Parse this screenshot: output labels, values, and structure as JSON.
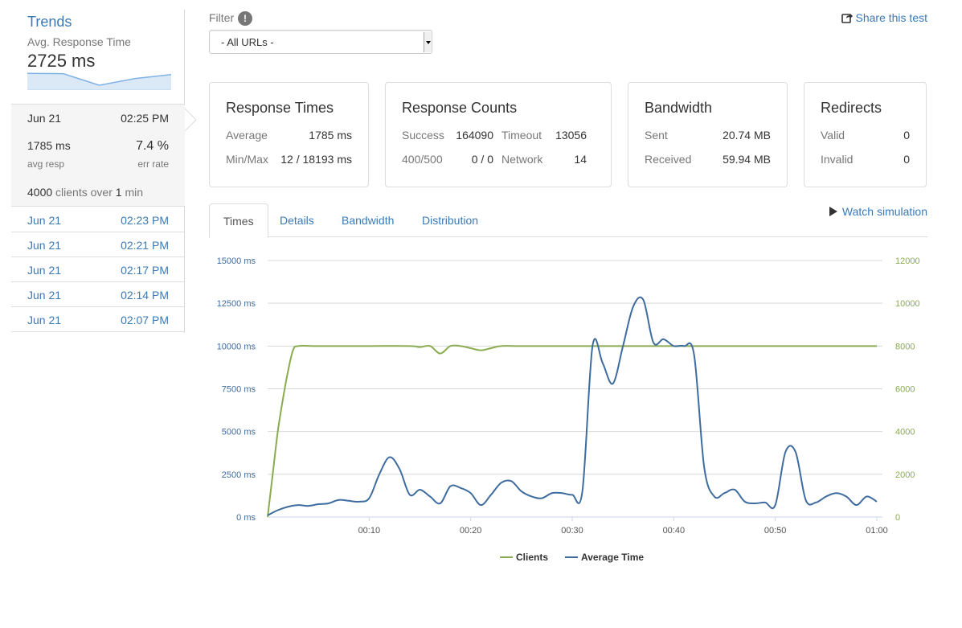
{
  "sidebar": {
    "title": "Trends",
    "avg_label": "Avg. Response Time",
    "avg_value": "2725 ms",
    "sparkline": [
      2725,
      2700,
      1500,
      2200,
      2600
    ],
    "current": {
      "date": "Jun 21",
      "time": "02:25 PM",
      "resp_value": "1785 ms",
      "resp_label": "avg resp",
      "err_value": "7.4 %",
      "err_label": "err rate",
      "clients_count": "4000",
      "clients_mid": "clients over",
      "duration_count": "1",
      "duration_unit": "min"
    },
    "runs": [
      {
        "date": "Jun 21",
        "time": "02:23 PM"
      },
      {
        "date": "Jun 21",
        "time": "02:21 PM"
      },
      {
        "date": "Jun 21",
        "time": "02:17 PM"
      },
      {
        "date": "Jun 21",
        "time": "02:14 PM"
      },
      {
        "date": "Jun 21",
        "time": "02:07 PM"
      }
    ]
  },
  "filter": {
    "label": "Filter",
    "info_icon": "!",
    "selected": "- All URLs -"
  },
  "share_label": "Share this test",
  "response_times": {
    "title": "Response Times",
    "average_label": "Average",
    "average_value": "1785 ms",
    "minmax_label": "Min/Max",
    "minmax_value": "12 / 18193 ms"
  },
  "response_counts": {
    "title": "Response Counts",
    "success_label": "Success",
    "success_value": "164090",
    "timeout_label": "Timeout",
    "timeout_value": "13056",
    "err_label": "400/500",
    "err_value": "0 / 0",
    "network_label": "Network",
    "network_value": "14"
  },
  "bandwidth": {
    "title": "Bandwidth",
    "sent_label": "Sent",
    "sent_value": "20.74 MB",
    "received_label": "Received",
    "received_value": "59.94 MB"
  },
  "redirects": {
    "title": "Redirects",
    "valid_label": "Valid",
    "valid_value": "0",
    "invalid_label": "Invalid",
    "invalid_value": "0"
  },
  "tabs": [
    {
      "label": "Times",
      "active": true
    },
    {
      "label": "Details",
      "active": false
    },
    {
      "label": "Bandwidth",
      "active": false
    },
    {
      "label": "Distribution",
      "active": false
    }
  ],
  "watch_label": "Watch simulation",
  "colors": {
    "link": "#3a7ab8",
    "clients": "#8aab4f",
    "avg_time": "#3e6c9f"
  },
  "chart_data": {
    "type": "line",
    "title": "",
    "xlabel": "",
    "ylabel": "",
    "x_ticks": [
      "00:10",
      "00:20",
      "00:30",
      "00:40",
      "00:50",
      "01:00"
    ],
    "x_range_seconds": [
      0,
      60
    ],
    "y_left_ticks": [
      "0 ms",
      "2500 ms",
      "5000 ms",
      "7500 ms",
      "10000 ms",
      "12500 ms",
      "15000 ms"
    ],
    "y_left_range": [
      0,
      15000
    ],
    "y_right_ticks": [
      "0",
      "2000",
      "4000",
      "6000",
      "8000",
      "10000",
      "12000"
    ],
    "y_right_range": [
      0,
      12000
    ],
    "grid": true,
    "legend_position": "bottom-center",
    "series": [
      {
        "name": "Clients",
        "axis": "right",
        "x": [
          0,
          0.5,
          1,
          1.5,
          2,
          2.5,
          3,
          5,
          10,
          14,
          15,
          16,
          17,
          18,
          19,
          20,
          21,
          22,
          23,
          25,
          30,
          35,
          40,
          45,
          50,
          55,
          60
        ],
        "values": [
          0,
          2000,
          4000,
          5500,
          6800,
          7800,
          8000,
          8000,
          8000,
          8000,
          7950,
          8000,
          7650,
          8000,
          8000,
          7900,
          7800,
          7900,
          8000,
          8000,
          8000,
          8000,
          8000,
          8000,
          8000,
          8000,
          8000
        ]
      },
      {
        "name": "Average Time",
        "axis": "left",
        "x": [
          0,
          1,
          2,
          3,
          4,
          5,
          6,
          7,
          8,
          9,
          10,
          11,
          12,
          13,
          14,
          15,
          16,
          17,
          18,
          19,
          20,
          21,
          22,
          23,
          24,
          25,
          26,
          27,
          28,
          29,
          30,
          31,
          32,
          33,
          34,
          35,
          36,
          37,
          38,
          39,
          40,
          41,
          42,
          43,
          44,
          45,
          46,
          47,
          48,
          49,
          50,
          51,
          52,
          53,
          54,
          55,
          56,
          57,
          58,
          59,
          60
        ],
        "values": [
          100,
          400,
          600,
          700,
          650,
          750,
          800,
          1000,
          950,
          900,
          1100,
          2500,
          3500,
          2800,
          1300,
          1600,
          1200,
          800,
          1800,
          1700,
          1400,
          700,
          1300,
          2000,
          2100,
          1500,
          1200,
          1100,
          1400,
          1400,
          1300,
          1500,
          10000,
          9000,
          7800,
          10000,
          12300,
          12700,
          10200,
          10400,
          10000,
          10000,
          9500,
          2900,
          1200,
          1400,
          1600,
          900,
          800,
          850,
          700,
          3800,
          3800,
          1000,
          850,
          1200,
          1400,
          1200,
          700,
          1200,
          900
        ]
      }
    ]
  }
}
